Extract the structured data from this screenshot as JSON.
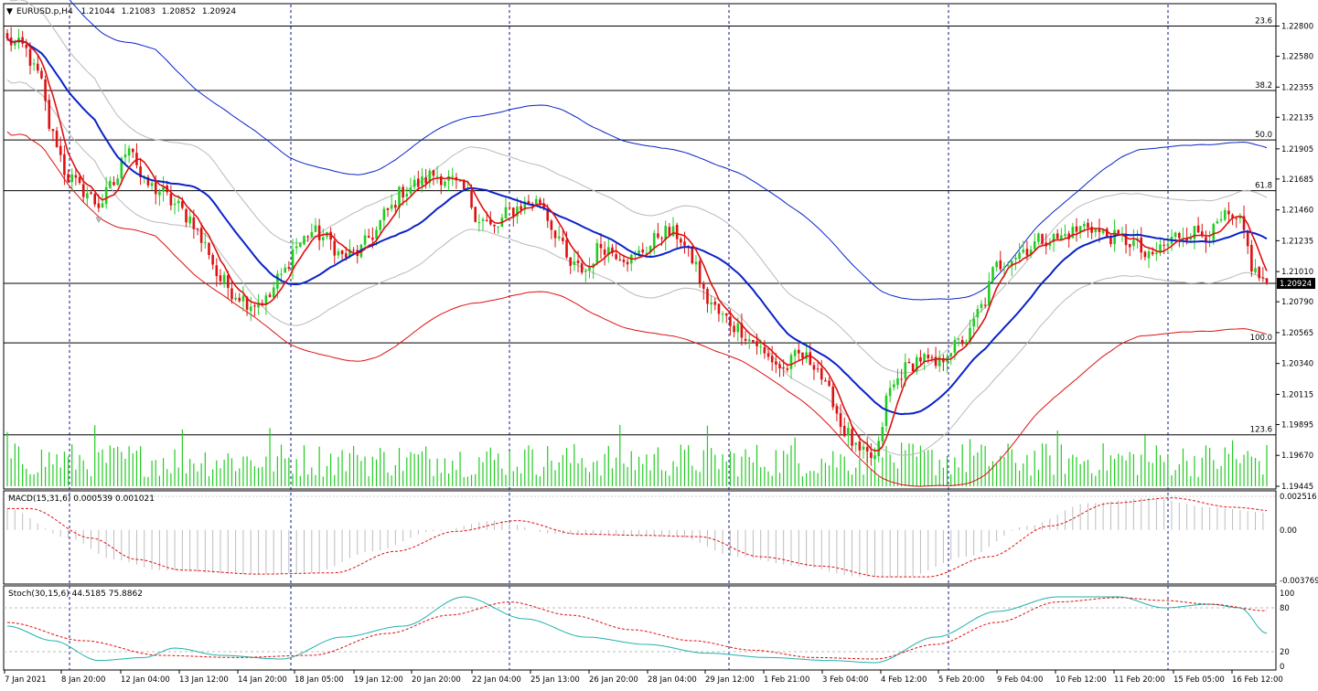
{
  "header": {
    "arrow_icon": "dropdown-arrow-icon",
    "symbol": "EURUSD.p,H4",
    "open": "1.21044",
    "high": "1.21083",
    "low": "1.20852",
    "close": "1.20924"
  },
  "colors": {
    "bull": "#22cc22",
    "bear": "#dd1111",
    "ma_slow": "#0a22c8",
    "ma_fast": "#dd1111",
    "band_outer_upper": "#0a22c8",
    "band_outer_lower": "#dd1111",
    "band_inner": "#b9b9b9",
    "volume": "#22cc22",
    "macd_hist": "#bdbdbd",
    "macd_signal": "#dd1111",
    "stoch_main": "#20b2aa",
    "stoch_signal": "#dd1111",
    "grid_vertical": "#0a1a8a",
    "fib_lines": "#000000"
  },
  "chart_data": [
    {
      "type": "candlestick",
      "name": "price",
      "ylim": [
        1.19445,
        1.2295
      ],
      "y_ticks": [
        "1.22800",
        "1.22580",
        "1.22355",
        "1.22135",
        "1.21905",
        "1.21685",
        "1.21460",
        "1.21235",
        "1.21010",
        "1.20790",
        "1.20565",
        "1.20340",
        "1.20115",
        "1.19895",
        "1.19670",
        "1.19445"
      ],
      "current_price": "1.20924",
      "fib_levels": [
        {
          "label": "23.6",
          "price": 1.228
        },
        {
          "label": "38.2",
          "price": 1.2233
        },
        {
          "label": "50.0",
          "price": 1.2197
        },
        {
          "label": "61.8",
          "price": 1.216
        },
        {
          "label": "100.0",
          "price": 1.2049
        },
        {
          "label": "123.6",
          "price": 1.1982
        }
      ],
      "x_labels": [
        "7 Jan 2021",
        "8 Jan 20:00",
        "12 Jan 04:00",
        "13 Jan 12:00",
        "14 Jan 20:00",
        "18 Jan 05:00",
        "19 Jan 12:00",
        "20 Jan 20:00",
        "22 Jan 04:00",
        "25 Jan 13:00",
        "26 Jan 20:00",
        "28 Jan 04:00",
        "29 Jan 12:00",
        "1 Feb 21:00",
        "3 Feb 04:00",
        "4 Feb 12:00",
        "5 Feb 20:00",
        "9 Feb 04:00",
        "10 Feb 12:00",
        "11 Feb 20:00",
        "15 Feb 05:00",
        "16 Feb 12:00"
      ],
      "anchors_close": [
        [
          0,
          1.2269
        ],
        [
          4,
          1.2265
        ],
        [
          8,
          1.2245
        ],
        [
          12,
          1.22
        ],
        [
          16,
          1.217
        ],
        [
          20,
          1.216
        ],
        [
          24,
          1.215
        ],
        [
          28,
          1.2165
        ],
        [
          32,
          1.2195
        ],
        [
          36,
          1.2165
        ],
        [
          40,
          1.216
        ],
        [
          44,
          1.215
        ],
        [
          48,
          1.214
        ],
        [
          52,
          1.212
        ],
        [
          56,
          1.2095
        ],
        [
          60,
          1.2085
        ],
        [
          64,
          1.2078
        ],
        [
          68,
          1.208
        ],
        [
          72,
          1.2098
        ],
        [
          76,
          1.212
        ],
        [
          80,
          1.213
        ],
        [
          84,
          1.2125
        ],
        [
          88,
          1.2112
        ],
        [
          92,
          1.2115
        ],
        [
          96,
          1.2128
        ],
        [
          100,
          1.2145
        ],
        [
          104,
          1.216
        ],
        [
          108,
          1.2165
        ],
        [
          112,
          1.2172
        ],
        [
          116,
          1.2168
        ],
        [
          120,
          1.216
        ],
        [
          124,
          1.214
        ],
        [
          128,
          1.2132
        ],
        [
          132,
          1.2145
        ],
        [
          136,
          1.215
        ],
        [
          140,
          1.2152
        ],
        [
          144,
          1.213
        ],
        [
          148,
          1.2105
        ],
        [
          152,
          1.2102
        ],
        [
          156,
          1.212
        ],
        [
          160,
          1.2115
        ],
        [
          164,
          1.211
        ],
        [
          168,
          1.2118
        ],
        [
          172,
          1.213
        ],
        [
          176,
          1.2128
        ],
        [
          180,
          1.211
        ],
        [
          184,
          1.208
        ],
        [
          188,
          1.2068
        ],
        [
          192,
          1.206
        ],
        [
          196,
          1.205
        ],
        [
          200,
          1.2038
        ],
        [
          204,
          1.203
        ],
        [
          208,
          1.204
        ],
        [
          212,
          1.2035
        ],
        [
          216,
          1.2012
        ],
        [
          220,
          1.1985
        ],
        [
          224,
          1.1968
        ],
        [
          228,
          1.1965
        ],
        [
          232,
          1.2015
        ],
        [
          236,
          1.203
        ],
        [
          240,
          1.2038
        ],
        [
          244,
          1.2032
        ],
        [
          248,
          1.2045
        ],
        [
          252,
          1.2052
        ],
        [
          256,
          1.2075
        ],
        [
          260,
          1.2105
        ],
        [
          264,
          1.2112
        ],
        [
          268,
          1.2118
        ],
        [
          272,
          1.2125
        ],
        [
          276,
          1.2125
        ],
        [
          280,
          1.213
        ],
        [
          284,
          1.2135
        ],
        [
          288,
          1.2128
        ],
        [
          292,
          1.2125
        ],
        [
          296,
          1.2122
        ],
        [
          300,
          1.211
        ],
        [
          304,
          1.212
        ],
        [
          308,
          1.2128
        ],
        [
          312,
          1.213
        ],
        [
          316,
          1.2128
        ],
        [
          320,
          1.214
        ],
        [
          324,
          1.2135
        ],
        [
          328,
          1.21
        ],
        [
          331,
          1.2092
        ]
      ],
      "series": [
        {
          "name": "MA slow",
          "color": "#0a22c8"
        },
        {
          "name": "MA fast",
          "color": "#dd1111"
        },
        {
          "name": "Envelope outer upper",
          "color": "#0a22c8"
        },
        {
          "name": "Envelope outer lower",
          "color": "#dd1111"
        },
        {
          "name": "Envelope inner",
          "color": "#b9b9b9"
        },
        {
          "name": "Volume",
          "color": "#22cc22"
        }
      ]
    },
    {
      "type": "macd",
      "label": "MACD(15,31,6) 0.000539 0.001021",
      "y_ticks": [
        "0.002516",
        "0.00",
        "-0.003769"
      ],
      "ylim": [
        -0.003769,
        0.002516
      ],
      "anchors": [
        [
          0,
          0.0016
        ],
        [
          16,
          -0.0006
        ],
        [
          28,
          -0.0022
        ],
        [
          40,
          -0.003
        ],
        [
          60,
          -0.0033
        ],
        [
          80,
          -0.0032
        ],
        [
          96,
          -0.0016
        ],
        [
          112,
          -0.0001
        ],
        [
          128,
          0.0007
        ],
        [
          144,
          -0.0003
        ],
        [
          160,
          -0.0004
        ],
        [
          176,
          -0.0005
        ],
        [
          192,
          -0.002
        ],
        [
          208,
          -0.0027
        ],
        [
          224,
          -0.0035
        ],
        [
          236,
          -0.0035
        ],
        [
          252,
          -0.002
        ],
        [
          268,
          0.0003
        ],
        [
          284,
          0.002
        ],
        [
          300,
          0.0024
        ],
        [
          316,
          0.0017
        ],
        [
          331,
          0.0013
        ]
      ]
    },
    {
      "type": "stochastic",
      "label": "Stoch(30,15,6) 44.5185 75.8862",
      "y_ticks": [
        "100",
        "80",
        "20",
        "0"
      ],
      "ylim": [
        0,
        100
      ],
      "levels": [
        80,
        20
      ],
      "main_anchors": [
        [
          0,
          55
        ],
        [
          12,
          35
        ],
        [
          24,
          8
        ],
        [
          36,
          12
        ],
        [
          44,
          25
        ],
        [
          56,
          15
        ],
        [
          72,
          10
        ],
        [
          88,
          40
        ],
        [
          104,
          55
        ],
        [
          120,
          95
        ],
        [
          136,
          65
        ],
        [
          152,
          40
        ],
        [
          168,
          30
        ],
        [
          184,
          18
        ],
        [
          200,
          12
        ],
        [
          216,
          8
        ],
        [
          228,
          5
        ],
        [
          244,
          40
        ],
        [
          260,
          75
        ],
        [
          276,
          95
        ],
        [
          292,
          95
        ],
        [
          304,
          80
        ],
        [
          316,
          85
        ],
        [
          324,
          80
        ],
        [
          331,
          45
        ]
      ],
      "signal_anchors": [
        [
          0,
          60
        ],
        [
          20,
          35
        ],
        [
          40,
          15
        ],
        [
          60,
          12
        ],
        [
          80,
          15
        ],
        [
          100,
          45
        ],
        [
          116,
          70
        ],
        [
          132,
          88
        ],
        [
          148,
          70
        ],
        [
          164,
          50
        ],
        [
          180,
          35
        ],
        [
          196,
          22
        ],
        [
          212,
          12
        ],
        [
          228,
          10
        ],
        [
          244,
          30
        ],
        [
          260,
          60
        ],
        [
          276,
          88
        ],
        [
          292,
          94
        ],
        [
          304,
          90
        ],
        [
          316,
          85
        ],
        [
          331,
          76
        ]
      ]
    }
  ]
}
